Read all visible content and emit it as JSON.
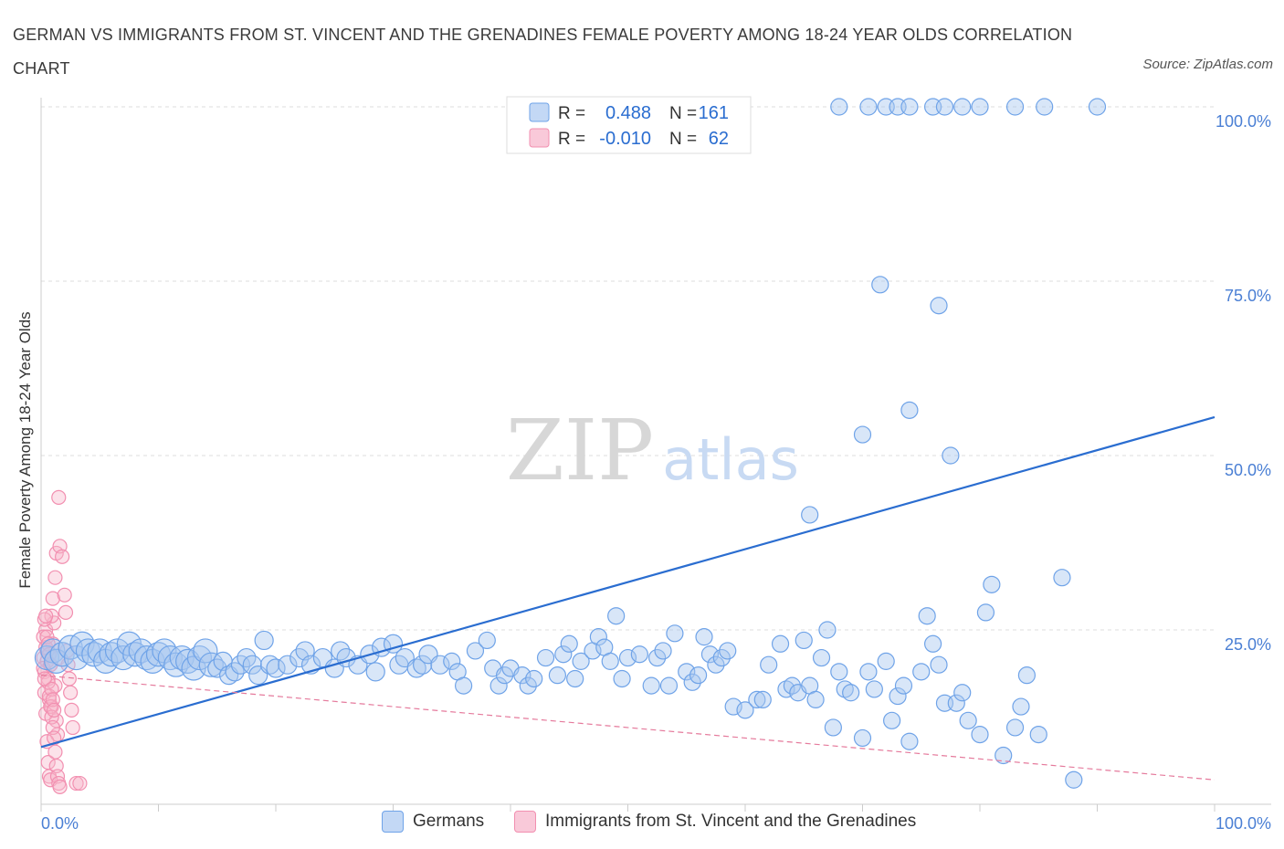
{
  "title": "GERMAN VS IMMIGRANTS FROM ST. VINCENT AND THE GRENADINES FEMALE POVERTY AMONG 18-24 YEAR OLDS CORRELATION CHART",
  "source": "Source: ZipAtlas.com",
  "watermark": {
    "zip": "ZIP",
    "atlas": "atlas"
  },
  "colors": {
    "blue": "#6fa3e8",
    "blue_line": "#2a6dd0",
    "pink": "#f28fb0",
    "pink_line": "#e57a9c",
    "axis_text": "#4a7fd4"
  },
  "chart_data": {
    "type": "scatter",
    "ylabel": "Female Poverty Among 18-24 Year Olds",
    "xlim": [
      0,
      100
    ],
    "ylim": [
      0,
      100
    ],
    "x_ticks": [
      "0.0%",
      "100.0%"
    ],
    "y_ticks": [
      "25.0%",
      "50.0%",
      "75.0%",
      "100.0%"
    ],
    "y_tick_values": [
      25,
      50,
      75,
      100
    ],
    "grid": true,
    "legend": {
      "placement": "top-center",
      "rows": [
        {
          "r_label": "R =",
          "r_value": "0.488",
          "n_label": "N =",
          "n_value": "161"
        },
        {
          "r_label": "R =",
          "r_value": "-0.010",
          "n_label": "N =",
          "n_value": "62"
        }
      ]
    },
    "series": [
      {
        "name": "Germans",
        "color": "#6fa3e8",
        "trend": {
          "x": [
            0,
            100
          ],
          "y": [
            8.2,
            55.5
          ]
        },
        "points": [
          [
            0.5,
            21
          ],
          [
            1,
            22
          ],
          [
            1.3,
            20.5
          ],
          [
            1.8,
            21.5
          ],
          [
            2.5,
            22.5
          ],
          [
            3,
            21
          ],
          [
            3.5,
            23
          ],
          [
            4,
            22
          ],
          [
            4.5,
            21.5
          ],
          [
            5,
            22
          ],
          [
            5.5,
            20.5
          ],
          [
            6,
            21.5
          ],
          [
            6.5,
            22
          ],
          [
            7,
            21
          ],
          [
            7.5,
            23
          ],
          [
            8,
            21.5
          ],
          [
            8.5,
            22
          ],
          [
            9,
            21
          ],
          [
            9.5,
            20.5
          ],
          [
            10,
            21.5
          ],
          [
            10.5,
            22
          ],
          [
            11,
            21
          ],
          [
            11.5,
            20
          ],
          [
            12,
            21
          ],
          [
            12.5,
            20.5
          ],
          [
            13,
            19.5
          ],
          [
            13.5,
            21
          ],
          [
            14,
            22
          ],
          [
            14.5,
            20
          ],
          [
            15,
            19.5
          ],
          [
            15.5,
            20.5
          ],
          [
            16,
            18.5
          ],
          [
            16.5,
            19
          ],
          [
            17,
            20
          ],
          [
            17.5,
            21
          ],
          [
            18,
            20
          ],
          [
            18.5,
            18.5
          ],
          [
            19,
            23.5
          ],
          [
            19.5,
            20
          ],
          [
            20,
            19.5
          ],
          [
            21,
            20
          ],
          [
            22,
            21
          ],
          [
            22.5,
            22
          ],
          [
            23,
            20
          ],
          [
            24,
            21
          ],
          [
            25,
            19.5
          ],
          [
            25.5,
            22
          ],
          [
            26,
            21
          ],
          [
            27,
            20
          ],
          [
            28,
            21.5
          ],
          [
            28.5,
            19
          ],
          [
            29,
            22.5
          ],
          [
            30,
            23
          ],
          [
            30.5,
            20
          ],
          [
            31,
            21
          ],
          [
            32,
            19.5
          ],
          [
            32.5,
            20
          ],
          [
            33,
            21.5
          ],
          [
            34,
            20
          ],
          [
            35,
            20.5
          ],
          [
            35.5,
            19
          ],
          [
            36,
            17
          ],
          [
            37,
            22
          ],
          [
            38,
            23.5
          ],
          [
            38.5,
            19.5
          ],
          [
            39,
            17
          ],
          [
            39.5,
            18.5
          ],
          [
            40,
            19.5
          ],
          [
            41,
            18.5
          ],
          [
            41.5,
            17
          ],
          [
            42,
            18
          ],
          [
            43,
            21
          ],
          [
            44,
            18.5
          ],
          [
            44.5,
            21.5
          ],
          [
            45,
            23
          ],
          [
            45.5,
            18
          ],
          [
            46,
            20.5
          ],
          [
            47,
            22
          ],
          [
            47.5,
            24
          ],
          [
            48,
            22.5
          ],
          [
            48.5,
            20.5
          ],
          [
            49,
            27
          ],
          [
            49.5,
            18
          ],
          [
            50,
            21
          ],
          [
            51,
            21.5
          ],
          [
            52,
            17
          ],
          [
            52.5,
            21
          ],
          [
            53,
            22
          ],
          [
            53.5,
            17
          ],
          [
            54,
            24.5
          ],
          [
            55,
            19
          ],
          [
            55.5,
            17.5
          ],
          [
            56,
            18.5
          ],
          [
            56.5,
            24
          ],
          [
            57,
            21.5
          ],
          [
            57.5,
            20
          ],
          [
            58,
            21
          ],
          [
            58.5,
            22
          ],
          [
            59,
            14
          ],
          [
            60,
            13.5
          ],
          [
            61,
            15
          ],
          [
            61.5,
            15
          ],
          [
            62,
            20
          ],
          [
            63,
            23
          ],
          [
            63.5,
            16.5
          ],
          [
            64,
            17
          ],
          [
            64.5,
            16
          ],
          [
            65,
            23.5
          ],
          [
            65.5,
            17
          ],
          [
            66,
            15
          ],
          [
            66.5,
            21
          ],
          [
            67,
            25
          ],
          [
            67.5,
            11
          ],
          [
            68,
            19
          ],
          [
            68.5,
            16.5
          ],
          [
            69,
            16
          ],
          [
            70,
            9.5
          ],
          [
            70.5,
            19
          ],
          [
            71,
            16.5
          ],
          [
            72,
            20.5
          ],
          [
            72.5,
            12
          ],
          [
            73,
            15.5
          ],
          [
            73.5,
            17
          ],
          [
            74,
            9
          ],
          [
            75,
            19
          ],
          [
            75.5,
            27
          ],
          [
            76,
            23
          ],
          [
            76.5,
            20
          ],
          [
            77,
            14.5
          ],
          [
            78,
            14.5
          ],
          [
            78.5,
            16
          ],
          [
            79,
            12
          ],
          [
            80,
            10
          ],
          [
            80.5,
            27.5
          ],
          [
            81,
            31.5
          ],
          [
            82,
            7
          ],
          [
            83,
            11
          ],
          [
            83.5,
            14
          ],
          [
            84,
            18.5
          ],
          [
            85,
            10
          ],
          [
            87,
            32.5
          ],
          [
            88,
            3.5
          ],
          [
            65.5,
            41.5
          ],
          [
            70,
            53
          ],
          [
            74,
            56.5
          ],
          [
            77.5,
            50
          ],
          [
            71.5,
            74.5
          ],
          [
            76.5,
            71.5
          ],
          [
            68,
            100
          ],
          [
            70.5,
            100
          ],
          [
            72,
            100
          ],
          [
            73,
            100
          ],
          [
            74,
            100
          ],
          [
            76,
            100
          ],
          [
            77,
            100
          ],
          [
            78.5,
            100
          ],
          [
            80,
            100
          ],
          [
            83,
            100
          ],
          [
            85.5,
            100
          ],
          [
            90,
            100
          ]
        ]
      },
      {
        "name": "Immigrants from St. Vincent and the Grenadines",
        "color": "#f28fb0",
        "trend": {
          "x": [
            0,
            100
          ],
          "y": [
            18.5,
            3.5
          ]
        },
        "points": [
          [
            0.2,
            21
          ],
          [
            0.3,
            19
          ],
          [
            0.4,
            25
          ],
          [
            0.5,
            22
          ],
          [
            0.6,
            18
          ],
          [
            0.7,
            15
          ],
          [
            0.8,
            20
          ],
          [
            0.9,
            14
          ],
          [
            1,
            23
          ],
          [
            1.1,
            26
          ],
          [
            1.2,
            17
          ],
          [
            1.3,
            12
          ],
          [
            1.4,
            10
          ],
          [
            1.5,
            21
          ],
          [
            0.2,
            24
          ],
          [
            0.3,
            16
          ],
          [
            0.4,
            13
          ],
          [
            0.5,
            9
          ],
          [
            0.6,
            6
          ],
          [
            0.7,
            4
          ],
          [
            0.8,
            3.5
          ],
          [
            0.9,
            27
          ],
          [
            1,
            29.5
          ],
          [
            1.2,
            32.5
          ],
          [
            1.3,
            36
          ],
          [
            1.5,
            44
          ],
          [
            1.6,
            37
          ],
          [
            1.8,
            35.5
          ],
          [
            2,
            30
          ],
          [
            2.1,
            27.5
          ],
          [
            2.2,
            22
          ],
          [
            2.3,
            20
          ],
          [
            2.4,
            18
          ],
          [
            2.5,
            16
          ],
          [
            2.6,
            13.5
          ],
          [
            2.7,
            11
          ],
          [
            0.3,
            26.5
          ],
          [
            0.4,
            22.5
          ],
          [
            0.5,
            20.5
          ],
          [
            0.6,
            17.5
          ],
          [
            0.7,
            15.5
          ],
          [
            0.8,
            14
          ],
          [
            0.9,
            12.5
          ],
          [
            1,
            11
          ],
          [
            1.1,
            9.5
          ],
          [
            1.2,
            7.5
          ],
          [
            1.3,
            5.5
          ],
          [
            1.4,
            4
          ],
          [
            1.5,
            3
          ],
          [
            1.6,
            2.5
          ],
          [
            3,
            3
          ],
          [
            3.3,
            3
          ],
          [
            0.2,
            19.5
          ],
          [
            0.3,
            18
          ],
          [
            0.4,
            27
          ],
          [
            0.5,
            24
          ],
          [
            0.6,
            23
          ],
          [
            0.7,
            21.5
          ],
          [
            0.8,
            20
          ],
          [
            0.9,
            16.5
          ],
          [
            1,
            15
          ],
          [
            1.1,
            13.5
          ]
        ]
      }
    ]
  }
}
